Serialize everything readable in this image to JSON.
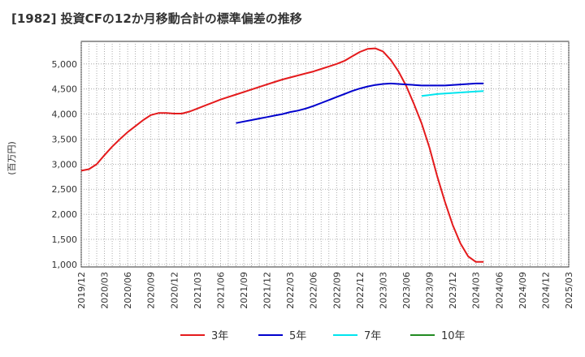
{
  "title": "[1982]  投資CFの12か月移動合計の標準偏差の推移",
  "chart_data": {
    "type": "line",
    "title": "[1982]  投資CFの12か月移動合計の標準偏差の推移",
    "ylabel": "(百万円)",
    "xlabel": "",
    "ylim": [
      950,
      5450
    ],
    "yticks": [
      1000,
      1500,
      2000,
      2500,
      3000,
      3500,
      4000,
      4500,
      5000
    ],
    "ytick_labels": [
      "1,000",
      "1,500",
      "2,000",
      "2,500",
      "3,000",
      "3,500",
      "4,000",
      "4,500",
      "5,000"
    ],
    "xlim": [
      "2019/12",
      "2025/03"
    ],
    "xtick_labels": [
      "2019/12",
      "2020/03",
      "2020/06",
      "2020/09",
      "2020/12",
      "2021/03",
      "2021/06",
      "2021/09",
      "2021/12",
      "2022/03",
      "2022/06",
      "2022/09",
      "2022/12",
      "2023/03",
      "2023/06",
      "2023/09",
      "2023/12",
      "2024/03",
      "2024/06",
      "2024/09",
      "2024/12",
      "2025/03"
    ],
    "grid": true,
    "legend_position": "bottom",
    "series": [
      {
        "name": "3年",
        "color": "#e41a1c",
        "points": [
          [
            "2019/12",
            2870
          ],
          [
            "2020/01",
            2900
          ],
          [
            "2020/02",
            3000
          ],
          [
            "2020/03",
            3180
          ],
          [
            "2020/04",
            3350
          ],
          [
            "2020/05",
            3500
          ],
          [
            "2020/06",
            3640
          ],
          [
            "2020/07",
            3760
          ],
          [
            "2020/08",
            3880
          ],
          [
            "2020/09",
            3980
          ],
          [
            "2020/10",
            4020
          ],
          [
            "2020/11",
            4020
          ],
          [
            "2020/12",
            4010
          ],
          [
            "2021/01",
            4010
          ],
          [
            "2021/02",
            4050
          ],
          [
            "2021/03",
            4110
          ],
          [
            "2021/04",
            4170
          ],
          [
            "2021/05",
            4230
          ],
          [
            "2021/06",
            4290
          ],
          [
            "2021/07",
            4340
          ],
          [
            "2021/08",
            4390
          ],
          [
            "2021/09",
            4440
          ],
          [
            "2021/10",
            4490
          ],
          [
            "2021/11",
            4540
          ],
          [
            "2021/12",
            4590
          ],
          [
            "2022/01",
            4640
          ],
          [
            "2022/02",
            4690
          ],
          [
            "2022/03",
            4730
          ],
          [
            "2022/04",
            4770
          ],
          [
            "2022/05",
            4810
          ],
          [
            "2022/06",
            4850
          ],
          [
            "2022/07",
            4900
          ],
          [
            "2022/08",
            4950
          ],
          [
            "2022/09",
            5000
          ],
          [
            "2022/10",
            5060
          ],
          [
            "2022/11",
            5150
          ],
          [
            "2022/12",
            5240
          ],
          [
            "2023/01",
            5300
          ],
          [
            "2023/02",
            5310
          ],
          [
            "2023/03",
            5250
          ],
          [
            "2023/04",
            5080
          ],
          [
            "2023/05",
            4850
          ],
          [
            "2023/06",
            4560
          ],
          [
            "2023/07",
            4200
          ],
          [
            "2023/08",
            3810
          ],
          [
            "2023/09",
            3330
          ],
          [
            "2023/10",
            2760
          ],
          [
            "2023/11",
            2250
          ],
          [
            "2023/12",
            1790
          ],
          [
            "2024/01",
            1420
          ],
          [
            "2024/02",
            1160
          ],
          [
            "2024/03",
            1050
          ],
          [
            "2024/04",
            1050
          ]
        ]
      },
      {
        "name": "5年",
        "color": "#0000cd",
        "points": [
          [
            "2021/08",
            3820
          ],
          [
            "2021/09",
            3850
          ],
          [
            "2021/10",
            3880
          ],
          [
            "2021/11",
            3910
          ],
          [
            "2021/12",
            3940
          ],
          [
            "2022/01",
            3970
          ],
          [
            "2022/02",
            4000
          ],
          [
            "2022/03",
            4040
          ],
          [
            "2022/04",
            4070
          ],
          [
            "2022/05",
            4110
          ],
          [
            "2022/06",
            4160
          ],
          [
            "2022/07",
            4220
          ],
          [
            "2022/08",
            4280
          ],
          [
            "2022/09",
            4340
          ],
          [
            "2022/10",
            4400
          ],
          [
            "2022/11",
            4460
          ],
          [
            "2022/12",
            4510
          ],
          [
            "2023/01",
            4550
          ],
          [
            "2023/02",
            4580
          ],
          [
            "2023/03",
            4600
          ],
          [
            "2023/04",
            4610
          ],
          [
            "2023/05",
            4600
          ],
          [
            "2023/06",
            4590
          ],
          [
            "2023/07",
            4580
          ],
          [
            "2023/08",
            4570
          ],
          [
            "2023/09",
            4570
          ],
          [
            "2023/10",
            4570
          ],
          [
            "2023/11",
            4570
          ],
          [
            "2023/12",
            4580
          ],
          [
            "2024/01",
            4590
          ],
          [
            "2024/02",
            4600
          ],
          [
            "2024/03",
            4610
          ],
          [
            "2024/04",
            4610
          ]
        ]
      },
      {
        "name": "7年",
        "color": "#00e5ee",
        "points": [
          [
            "2023/08",
            4360
          ],
          [
            "2023/09",
            4380
          ],
          [
            "2023/10",
            4400
          ],
          [
            "2023/11",
            4410
          ],
          [
            "2023/12",
            4420
          ],
          [
            "2024/01",
            4430
          ],
          [
            "2024/02",
            4440
          ],
          [
            "2024/03",
            4450
          ],
          [
            "2024/04",
            4460
          ]
        ]
      },
      {
        "name": "10年",
        "color": "#228b22",
        "points": []
      }
    ]
  }
}
